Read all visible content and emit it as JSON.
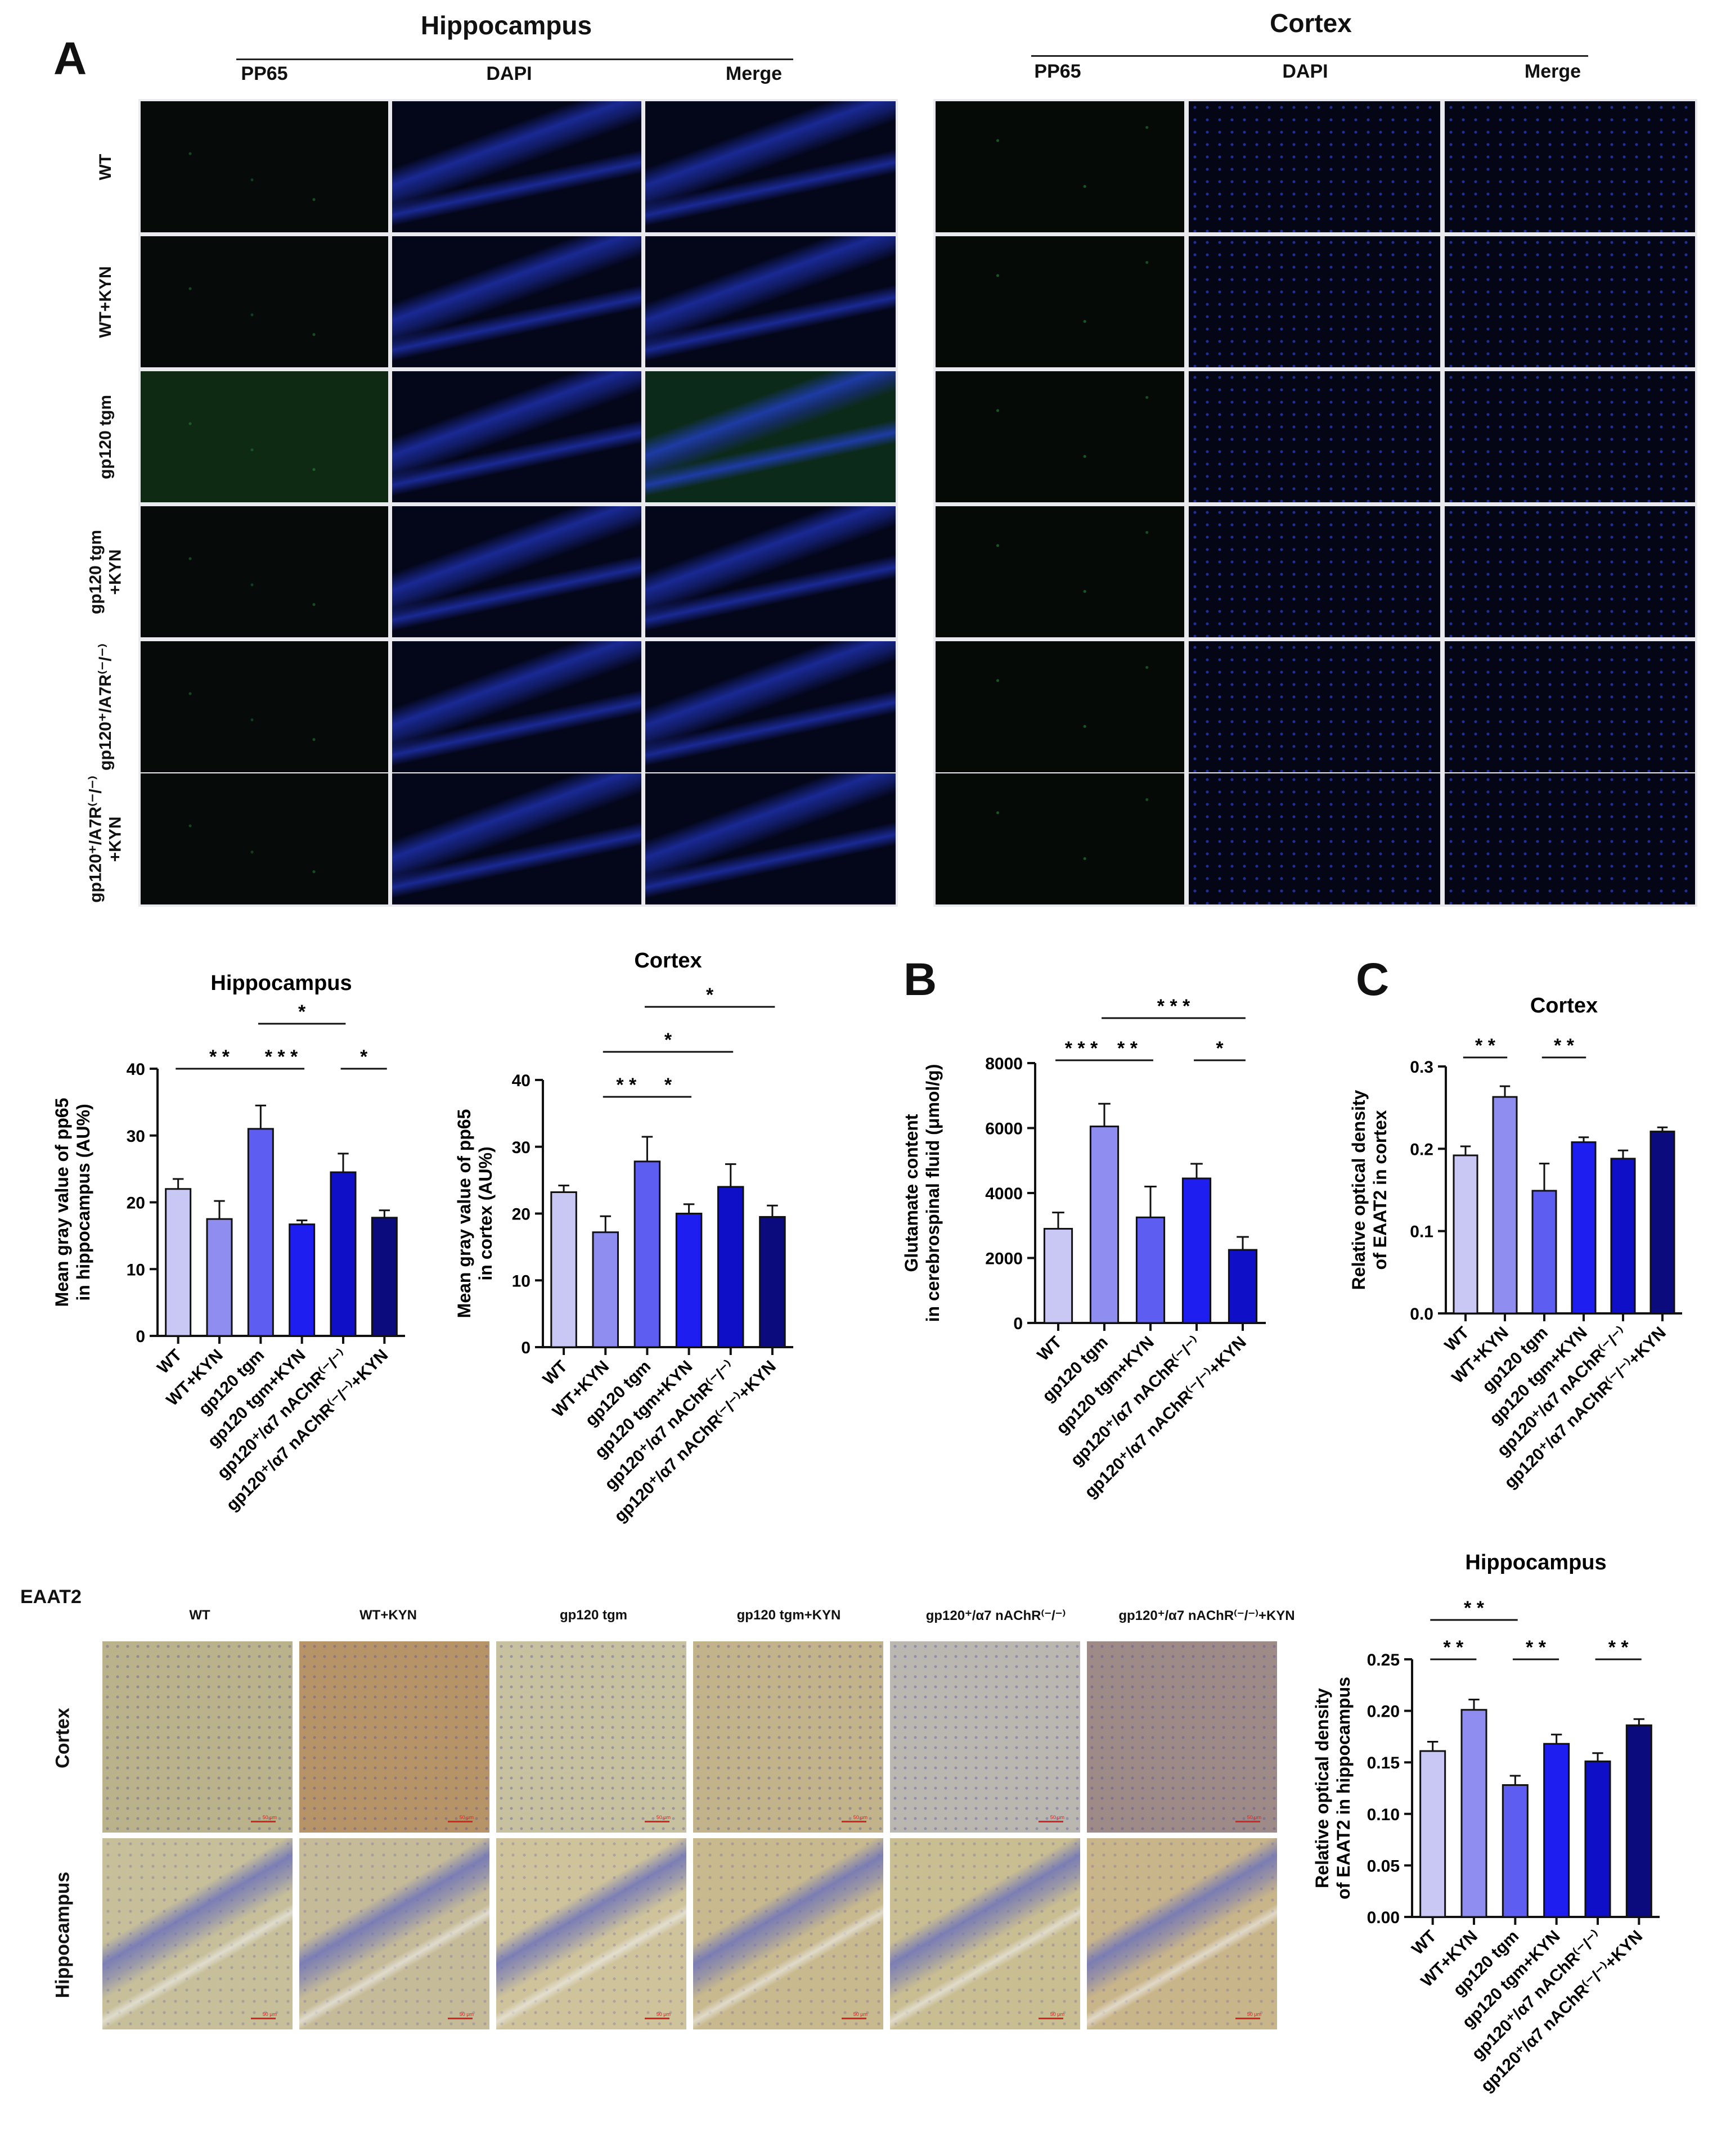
{
  "panel_letters": {
    "a": "A",
    "b": "B",
    "c": "C"
  },
  "section_titles": {
    "hippocampus": "Hippocampus",
    "cortex": "Cortex"
  },
  "if_columns": [
    "PP65",
    "DAPI",
    "Merge"
  ],
  "if_rows": [
    "WT",
    "WT+KYN",
    "gp120 tgm",
    "gp120 tgm\n+KYN",
    "gp120⁺/A7R⁽⁻/⁻⁾",
    "gp120⁺/A7R⁽⁻/⁻⁾\n+KYN"
  ],
  "colors": {
    "bar1": "#c9c8f4",
    "bar2": "#8f8ef0",
    "bar3": "#5e5df1",
    "bar4": "#1e1ef0",
    "bar5": "#0f0fc8",
    "bar6": "#0b0b7e",
    "if_bg": "#05060d",
    "dapi": "#1d2fa8",
    "pp65": "#2fb84a",
    "ihc_tan": "#c9bd90"
  },
  "ihc": {
    "label": "EAAT2",
    "columns": [
      "WT",
      "WT+KYN",
      "gp120 tgm",
      "gp120 tgm+KYN",
      "gp120⁺/α7 nAChR⁽⁻/⁻⁾",
      "gp120⁺/α7 nAChR⁽⁻/⁻⁾+KYN"
    ],
    "rows": [
      "Cortex",
      "Hippocampus"
    ],
    "scale_label": "50 μm"
  },
  "chart_data": [
    {
      "id": "pp65-hippocampus",
      "type": "bar",
      "title": "Hippocampus",
      "ylabel_lines": [
        "Mean gray value of pp65",
        "in hippocampus (AU%)"
      ],
      "categories": [
        "WT",
        "WT+KYN",
        "gp120 tgm",
        "gp120 tgm+KYN",
        "gp120⁺/α7 nAChR⁽⁻/⁻⁾",
        "gp120⁺/α7 nAChR⁽⁻/⁻⁾+KYN"
      ],
      "values": [
        22,
        17.5,
        31,
        16.7,
        24.5,
        17.7
      ],
      "errors": [
        1.5,
        2.7,
        3.5,
        0.6,
        2.8,
        1.1
      ],
      "ylim": [
        0,
        40
      ],
      "yticks": [
        "0",
        "10",
        "20",
        "30",
        "40"
      ],
      "sig": [
        {
          "from": 0,
          "to": 2,
          "label": "* *",
          "level": 0
        },
        {
          "from": 2,
          "to": 3,
          "label": "* * *",
          "level": 0
        },
        {
          "from": 2,
          "to": 4,
          "label": "*",
          "level": 1
        },
        {
          "from": 4,
          "to": 5,
          "label": "*",
          "level": 0
        }
      ]
    },
    {
      "id": "pp65-cortex",
      "type": "bar",
      "title": "Cortex",
      "ylabel_lines": [
        "Mean gray value of pp65",
        "in cortex (AU%)"
      ],
      "categories": [
        "WT",
        "WT+KYN",
        "gp120 tgm",
        "gp120 tgm+KYN",
        "gp120⁺/α7 nAChR⁽⁻/⁻⁾",
        "gp120⁺/α7 nAChR⁽⁻/⁻⁾+KYN"
      ],
      "values": [
        23.2,
        17.2,
        27.8,
        20,
        24,
        19.5
      ],
      "errors": [
        1,
        2.4,
        3.7,
        1.4,
        3.4,
        1.7
      ],
      "ylim": [
        0,
        40
      ],
      "yticks": [
        "0",
        "10",
        "20",
        "30",
        "40"
      ],
      "sig": [
        {
          "from": 1,
          "to": 2,
          "label": "* *",
          "level": 0
        },
        {
          "from": 2,
          "to": 3,
          "label": "*",
          "level": 0
        },
        {
          "from": 1,
          "to": 4,
          "label": "*",
          "level": 1
        },
        {
          "from": 2,
          "to": 5,
          "label": "*",
          "level": 2
        }
      ]
    },
    {
      "id": "glutamate-csf",
      "type": "bar",
      "title": "",
      "ylabel_lines": [
        "Glutamate content",
        "in cerebrospinal fluid (μmol/g)"
      ],
      "categories": [
        "WT",
        "gp120 tgm",
        "gp120 tgm+KYN",
        "gp120⁺/α7 nAChR⁽⁻/⁻⁾",
        "gp120⁺/α7 nAChR⁽⁻/⁻⁾+KYN"
      ],
      "values": [
        2900,
        6050,
        3250,
        4450,
        2250
      ],
      "errors": [
        500,
        700,
        950,
        450,
        400
      ],
      "ylim": [
        0,
        8000
      ],
      "yticks": [
        "0",
        "2000",
        "4000",
        "6000",
        "8000"
      ],
      "sig": [
        {
          "from": 0,
          "to": 1,
          "label": "* * *",
          "level": 0
        },
        {
          "from": 1,
          "to": 2,
          "label": "* *",
          "level": 0
        },
        {
          "from": 3,
          "to": 4,
          "label": "*",
          "level": 0
        },
        {
          "from": 1,
          "to": 4,
          "label": "* * *",
          "level": 1
        }
      ]
    },
    {
      "id": "eaat2-cortex",
      "type": "bar",
      "title": "Cortex",
      "ylabel_lines": [
        "Relative optical density",
        "of EAAT2 in cortex"
      ],
      "categories": [
        "WT",
        "WT+KYN",
        "gp120 tgm",
        "gp120 tgm+KYN",
        "gp120⁺/α7 nAChR⁽⁻/⁻⁾",
        "gp120⁺/α7 nAChR⁽⁻/⁻⁾+KYN"
      ],
      "values": [
        0.192,
        0.263,
        0.149,
        0.208,
        0.188,
        0.221
      ],
      "errors": [
        0.011,
        0.013,
        0.033,
        0.006,
        0.01,
        0.005
      ],
      "ylim": [
        0,
        0.3
      ],
      "yticks": [
        "0.0",
        "0.1",
        "0.2",
        "0.3"
      ],
      "sig": [
        {
          "from": 0,
          "to": 1,
          "label": "* *",
          "level": 0
        },
        {
          "from": 2,
          "to": 3,
          "label": "* *",
          "level": 0
        }
      ]
    },
    {
      "id": "eaat2-hippocampus",
      "type": "bar",
      "title": "Hippocampus",
      "ylabel_lines": [
        "Relative optical density",
        "of EAAT2 in hippocampus"
      ],
      "categories": [
        "WT",
        "WT+KYN",
        "gp120 tgm",
        "gp120 tgm+KYN",
        "gp120⁺/α7 nAChR⁽⁻/⁻⁾",
        "gp120⁺/α7 nAChR⁽⁻/⁻⁾+KYN"
      ],
      "values": [
        0.161,
        0.201,
        0.128,
        0.168,
        0.151,
        0.186
      ],
      "errors": [
        0.009,
        0.01,
        0.009,
        0.009,
        0.008,
        0.006
      ],
      "ylim": [
        0,
        0.25
      ],
      "yticks": [
        "0.00",
        "0.05",
        "0.10",
        "0.15",
        "0.20",
        "0.25"
      ],
      "sig": [
        {
          "from": 0,
          "to": 1,
          "label": "* *",
          "level": 0
        },
        {
          "from": 2,
          "to": 3,
          "label": "* *",
          "level": 0
        },
        {
          "from": 4,
          "to": 5,
          "label": "* *",
          "level": 0
        },
        {
          "from": 0,
          "to": 2,
          "label": "* *",
          "level": 1
        }
      ]
    }
  ]
}
